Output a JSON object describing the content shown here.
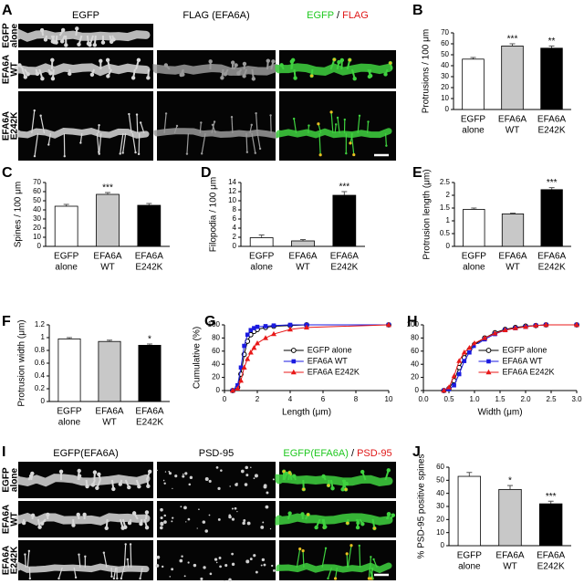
{
  "figures": [
    {
      "panel": "A",
      "columns": [
        "EGFP",
        "FLAG (EFA6A)"
      ],
      "merge_header": {
        "parts": [
          "EGFP",
          " / ",
          "FLAG"
        ],
        "colors": [
          "#1fc81f",
          "#000000",
          "#e01818"
        ]
      },
      "rows": [
        [
          "EGFP",
          "alone"
        ],
        [
          "EFA6A",
          "WT"
        ],
        [
          "EFA6A",
          "E242K"
        ]
      ]
    },
    {
      "panel": "I",
      "columns": [
        "EGFP(EFA6A)",
        "PSD-95"
      ],
      "merge_header": {
        "parts": [
          "EGFP(EFA6A)",
          " / ",
          "PSD-95"
        ],
        "colors": [
          "#1fc81f",
          "#000000",
          "#e01818"
        ]
      },
      "rows": [
        [
          "EGFP",
          "alone"
        ],
        [
          "EFA6A",
          "WT"
        ],
        [
          "EFA6A",
          "E242K"
        ]
      ]
    }
  ],
  "chart_data": [
    {
      "type": "bar",
      "panel": "B",
      "ylabel": "Protrusions / 100 μm",
      "categories": [
        [
          "EGFP",
          "alone"
        ],
        [
          "EFA6A",
          "WT"
        ],
        [
          "EFA6A",
          "E242K"
        ]
      ],
      "values": [
        46,
        58,
        56
      ],
      "errors": [
        1.5,
        2,
        2
      ],
      "significance": [
        null,
        "***",
        "**"
      ],
      "colors": [
        "#ffffff",
        "#c8c8c8",
        "#000000"
      ],
      "ylim": [
        0,
        70
      ],
      "yticks": [
        0,
        10,
        20,
        30,
        40,
        50,
        60,
        70
      ]
    },
    {
      "type": "bar",
      "panel": "C",
      "ylabel": "Spines / 100 μm",
      "categories": [
        [
          "EGFP",
          "alone"
        ],
        [
          "EFA6A",
          "WT"
        ],
        [
          "EFA6A",
          "E242K"
        ]
      ],
      "values": [
        44,
        57,
        45
      ],
      "errors": [
        2,
        2,
        2
      ],
      "significance": [
        null,
        "***",
        null
      ],
      "colors": [
        "#ffffff",
        "#c8c8c8",
        "#000000"
      ],
      "ylim": [
        0,
        70
      ],
      "yticks": [
        0,
        10,
        20,
        30,
        40,
        50,
        60,
        70
      ]
    },
    {
      "type": "bar",
      "panel": "D",
      "ylabel": "Filopodia / 100 μm",
      "categories": [
        [
          "EGFP",
          "alone"
        ],
        [
          "EFA6A",
          "WT"
        ],
        [
          "EFA6A",
          "E242K"
        ]
      ],
      "values": [
        1.9,
        1.2,
        11.2
      ],
      "errors": [
        0.6,
        0.3,
        0.8
      ],
      "significance": [
        null,
        null,
        "***"
      ],
      "colors": [
        "#ffffff",
        "#c8c8c8",
        "#000000"
      ],
      "ylim": [
        0,
        14
      ],
      "yticks": [
        0,
        2,
        4,
        6,
        8,
        10,
        12,
        14
      ]
    },
    {
      "type": "bar",
      "panel": "E",
      "ylabel": "Protrusion length (μm)",
      "categories": [
        [
          "EGFP",
          "alone"
        ],
        [
          "EFA6A",
          "WT"
        ],
        [
          "EFA6A",
          "E242K"
        ]
      ],
      "values": [
        1.45,
        1.27,
        2.22
      ],
      "errors": [
        0.05,
        0.03,
        0.08
      ],
      "significance": [
        null,
        null,
        "***"
      ],
      "colors": [
        "#ffffff",
        "#c8c8c8",
        "#000000"
      ],
      "ylim": [
        0,
        2.5
      ],
      "yticks": [
        0,
        0.5,
        1,
        1.5,
        2,
        2.5
      ]
    },
    {
      "type": "bar",
      "panel": "F",
      "ylabel": "Protrusion width (μm)",
      "categories": [
        [
          "EGFP",
          "alone"
        ],
        [
          "EFA6A",
          "WT"
        ],
        [
          "EFA6A",
          "E242K"
        ]
      ],
      "values": [
        0.98,
        0.94,
        0.88
      ],
      "errors": [
        0.02,
        0.02,
        0.02
      ],
      "significance": [
        null,
        null,
        "*"
      ],
      "colors": [
        "#ffffff",
        "#c8c8c8",
        "#000000"
      ],
      "ylim": [
        0,
        1.2
      ],
      "yticks": [
        0,
        0.2,
        0.4,
        0.6,
        0.8,
        1,
        1.2
      ]
    },
    {
      "type": "line",
      "panel": "G",
      "xlabel": "Length (μm)",
      "ylabel": "Cumulative (%)",
      "legend": "lower right",
      "x": [
        0.5,
        0.8,
        1.0,
        1.2,
        1.4,
        1.6,
        1.8,
        2.0,
        2.5,
        3.0,
        4.0,
        5.0,
        10
      ],
      "series": [
        {
          "name": "EGFP alone",
          "color": "#000000",
          "marker": "open-circle",
          "values": [
            0,
            5,
            25,
            55,
            75,
            85,
            90,
            93,
            96,
            98,
            99,
            100,
            100
          ]
        },
        {
          "name": "EFA6A WT",
          "color": "#1a1ae0",
          "marker": "square",
          "values": [
            0,
            8,
            35,
            68,
            85,
            92,
            95,
            97,
            98,
            99,
            100,
            100,
            100
          ]
        },
        {
          "name": "EFA6A E242K",
          "color": "#e81818",
          "marker": "triangle",
          "values": [
            0,
            3,
            15,
            35,
            48,
            58,
            65,
            72,
            80,
            86,
            93,
            96,
            100
          ]
        }
      ],
      "xlim": [
        0,
        10
      ],
      "xticks": [
        0,
        2,
        4,
        6,
        8,
        10
      ],
      "ylim": [
        0,
        100
      ],
      "yticks": [
        0,
        20,
        40,
        60,
        80,
        100
      ]
    },
    {
      "type": "line",
      "panel": "H",
      "xlabel": "Width (μm)",
      "ylabel": "",
      "legend": "lower right",
      "x": [
        0.4,
        0.5,
        0.6,
        0.7,
        0.8,
        0.9,
        1.0,
        1.2,
        1.4,
        1.6,
        1.8,
        2.0,
        2.2,
        2.4,
        3.0
      ],
      "series": [
        {
          "name": "EGFP alone",
          "color": "#000000",
          "marker": "open-circle",
          "values": [
            0,
            3,
            15,
            35,
            50,
            62,
            70,
            80,
            88,
            93,
            96,
            98,
            99,
            100,
            100
          ]
        },
        {
          "name": "EFA6A WT",
          "color": "#1a1ae0",
          "marker": "square",
          "values": [
            0,
            2,
            8,
            25,
            45,
            58,
            68,
            78,
            86,
            92,
            95,
            97,
            99,
            100,
            100
          ]
        },
        {
          "name": "EFA6A E242K",
          "color": "#e81818",
          "marker": "triangle",
          "values": [
            0,
            5,
            22,
            45,
            58,
            65,
            72,
            80,
            87,
            92,
            95,
            97,
            99,
            100,
            100
          ]
        }
      ],
      "xlim": [
        0,
        3
      ],
      "xticks": [
        {
          "value": 0,
          "label": "0.0"
        },
        0.5,
        {
          "value": 1,
          "label": "1.0"
        },
        1.5,
        {
          "value": 2,
          "label": "2.0"
        },
        2.5,
        {
          "value": 3,
          "label": "3.0"
        }
      ],
      "ylim": [
        0,
        100
      ],
      "yticks": [
        0,
        20,
        40,
        60,
        80,
        100
      ]
    },
    {
      "type": "bar",
      "panel": "J",
      "ylabel": "% PSD-95 positive spines",
      "categories": [
        [
          "EGFP",
          "alone"
        ],
        [
          "EFA6A",
          "WT"
        ],
        [
          "EFA6A",
          "E242K"
        ]
      ],
      "values": [
        53,
        43,
        32
      ],
      "errors": [
        3,
        3,
        2
      ],
      "significance": [
        null,
        "*",
        "***"
      ],
      "colors": [
        "#ffffff",
        "#c8c8c8",
        "#000000"
      ],
      "ylim": [
        0,
        60
      ],
      "yticks": [
        0,
        10,
        20,
        30,
        40,
        50,
        60
      ]
    }
  ]
}
